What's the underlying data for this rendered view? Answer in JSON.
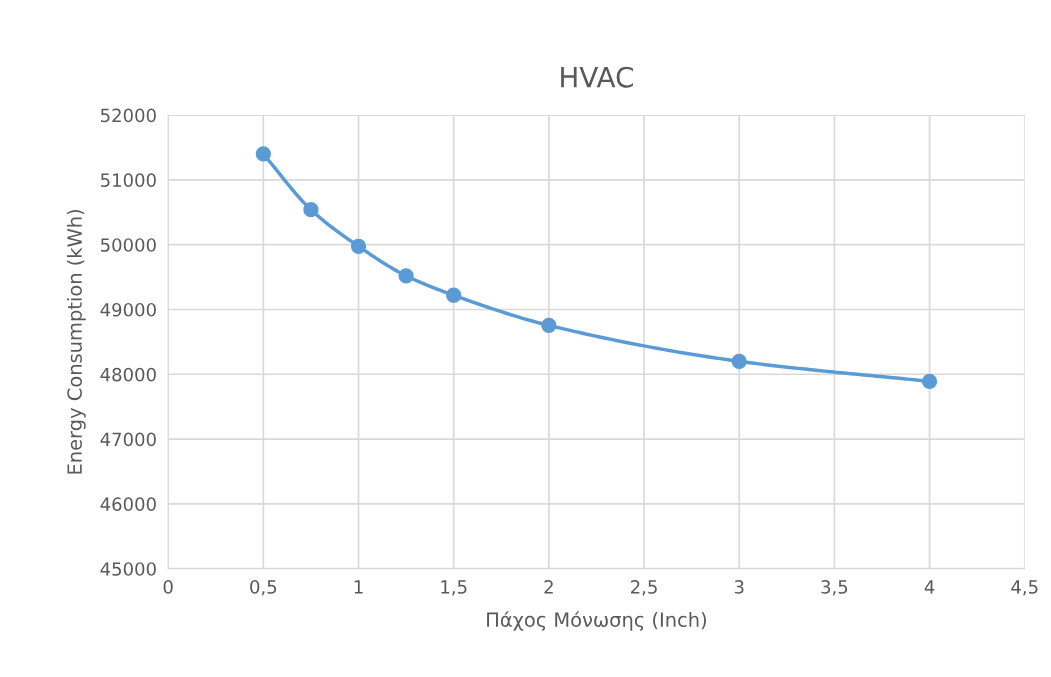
{
  "chart_data": {
    "type": "line",
    "title": "HVAC",
    "xlabel": "Πάχος Μόνωσης (Inch)",
    "ylabel": "Energy Consumption (kWh)",
    "x": [
      0.5,
      0.75,
      1,
      1.25,
      1.5,
      2,
      3,
      4
    ],
    "series": [
      {
        "color": "#5b9bd5",
        "values": [
          51400,
          50540,
          49975,
          49520,
          49220,
          48755,
          48200,
          47890
        ]
      }
    ],
    "xlim": [
      0,
      4.5
    ],
    "xticks": [
      0,
      {
        "value": 0.5,
        "label": "0,5"
      },
      1,
      {
        "value": 1.5,
        "label": "1,5"
      },
      2,
      {
        "value": 2.5,
        "label": "2,5"
      },
      3,
      {
        "value": 3.5,
        "label": "3,5"
      },
      4,
      {
        "value": 4.5,
        "label": "4,5"
      }
    ],
    "ylim": [
      45000,
      52000
    ],
    "yticks": [
      45000,
      46000,
      47000,
      48000,
      49000,
      50000,
      51000,
      52000
    ],
    "grid": true,
    "marker": "circle",
    "line_style": "solid"
  }
}
